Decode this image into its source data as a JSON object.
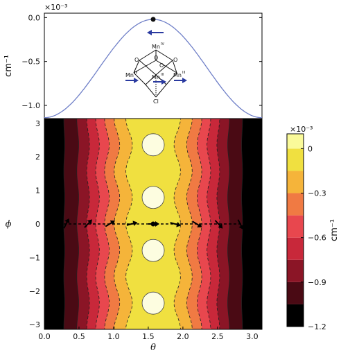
{
  "chart_data": [
    {
      "type": "line",
      "exponent_label": "×10⁻³",
      "ylabel": "cm⁻¹",
      "yticks": [
        "0.0",
        "−0.5",
        "−1.0"
      ],
      "ytick_values": [
        0.0,
        -0.5,
        -1.0
      ],
      "ylim": [
        -1.15,
        0.05
      ],
      "xlim": [
        0.0,
        3.14159
      ],
      "series": [
        {
          "x": [
            0.0,
            0.196,
            0.393,
            0.589,
            0.785,
            0.982,
            1.178,
            1.374,
            1.571,
            1.767,
            1.963,
            2.16,
            2.356,
            2.553,
            2.749,
            2.945,
            3.142
          ],
          "y": [
            -1.14,
            -1.1,
            -0.97,
            -0.8,
            -0.59,
            -0.39,
            -0.2,
            -0.06,
            -0.02,
            -0.06,
            -0.2,
            -0.39,
            -0.59,
            -0.8,
            -0.97,
            -1.1,
            -1.14
          ]
        }
      ],
      "marker": {
        "x": 1.571,
        "y": -0.02
      },
      "line_color": "#7080c8",
      "molecule": {
        "atoms": [
          "Mn",
          "O",
          "O",
          "O",
          "O",
          "Mn",
          "Mn",
          "Mn",
          "Cl"
        ],
        "superscripts": [
          "IV",
          "",
          "",
          "",
          "",
          "III",
          "III",
          "III",
          ""
        ],
        "arrow_color": "#2a3aa0"
      }
    },
    {
      "type": "heatmap",
      "xlabel": "θ",
      "ylabel": "ϕ",
      "xlim": [
        0.0,
        3.14159
      ],
      "ylim": [
        -3.14159,
        3.14159
      ],
      "xticks": [
        "0.0",
        "0.5",
        "1.0",
        "1.5",
        "2.0",
        "2.5",
        "3.0"
      ],
      "xtick_values": [
        0.0,
        0.5,
        1.0,
        1.5,
        2.0,
        2.5,
        3.0
      ],
      "yticks": [
        "3",
        "2",
        "1",
        "0",
        "−1",
        "−2",
        "−3"
      ],
      "ytick_values": [
        3,
        2,
        1,
        0,
        -1,
        -2,
        -3
      ],
      "contour_levels": [
        -1.2,
        -1.05,
        -0.9,
        -0.75,
        -0.6,
        -0.45,
        -0.3,
        -0.15,
        0.0,
        0.1
      ],
      "level_colors": [
        "#000000",
        "#4a0a14",
        "#8b1526",
        "#c8283a",
        "#e8474e",
        "#f07a43",
        "#f5b43a",
        "#f0e040",
        "#fafa9a"
      ],
      "wells": [
        {
          "theta": 1.571,
          "phi": 2.36
        },
        {
          "theta": 1.571,
          "phi": 0.79
        },
        {
          "theta": 1.571,
          "phi": -0.79
        },
        {
          "theta": 1.571,
          "phi": -2.36
        }
      ],
      "path_phi": 0.0,
      "colorbar": {
        "exponent_label": "×10⁻³",
        "label": "cm⁻¹",
        "ticks": [
          "0",
          "−0.3",
          "−0.6",
          "−0.9",
          "−1.2"
        ],
        "tick_values": [
          0.0,
          -0.3,
          -0.6,
          -0.9,
          -1.2
        ]
      }
    }
  ]
}
